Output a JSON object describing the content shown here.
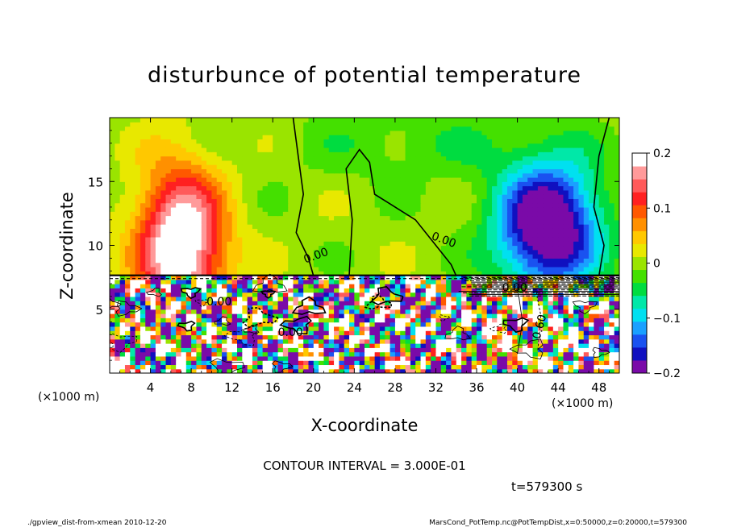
{
  "chart_data": {
    "type": "heatmap",
    "title": "disturbunce of potential temperature",
    "xlabel": "X-coordinate",
    "ylabel": "Z-coordinate",
    "x_unit_left": "(×1000 m)",
    "x_unit_right": "(×1000 m)",
    "xlim": [
      0,
      50
    ],
    "ylim": [
      0,
      20
    ],
    "x_ticks": [
      4,
      8,
      12,
      16,
      20,
      24,
      28,
      32,
      36,
      40,
      44,
      48
    ],
    "y_ticks": [
      5,
      10,
      15
    ],
    "colorbar": {
      "range": [
        -0.2,
        0.2
      ],
      "ticks": [
        0.2,
        0.1,
        0,
        -0.1,
        -0.2
      ],
      "tick_labels": [
        "0.2",
        "0.1",
        "0",
        "−0.1",
        "−0.2"
      ],
      "colors": [
        "#7a0aa8",
        "#1010c0",
        "#1a52f0",
        "#1aa0ff",
        "#00e0f0",
        "#00e8a8",
        "#00dc40",
        "#44e000",
        "#9ae400",
        "#e8e800",
        "#ffc800",
        "#ff9000",
        "#ff5800",
        "#ff2020",
        "#ff5a5a",
        "#ff9a9a",
        "#ffffff"
      ]
    },
    "contour_labels": [
      "0.00",
      "0.00",
      "0.00",
      "0.00",
      "0.60",
      "0.00"
    ],
    "contour_interval_text": "CONTOUR INTERVAL = 3.000E-01",
    "time_text": "t=579300 s",
    "regions": [
      {
        "name": "warm-anomaly",
        "x": 7,
        "z": 12,
        "value": 0.2
      },
      {
        "name": "cold-anomaly",
        "x": 42,
        "z": 12,
        "value": -0.2
      },
      {
        "name": "neutral-upper",
        "x": 24,
        "z": 14,
        "value": 0
      },
      {
        "name": "turbulent-boundary-layer",
        "x_range": [
          0,
          50
        ],
        "z_range": [
          0,
          7.5
        ],
        "value": "mixed"
      }
    ]
  },
  "footer": {
    "left": "./gpview_dist-from-xmean  2010-12-20",
    "right": "MarsCond_PotTemp.nc@PotTempDist,x=0:50000,z=0:20000,t=579300"
  }
}
